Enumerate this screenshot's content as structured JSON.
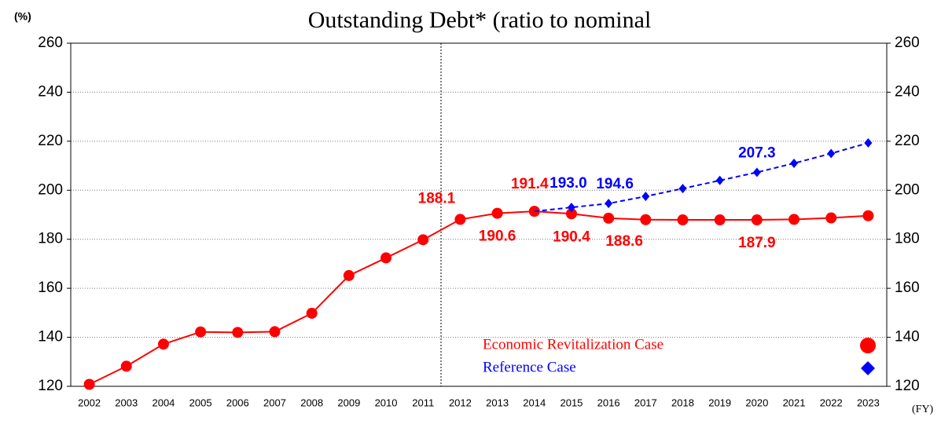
{
  "chart_data": {
    "type": "line",
    "title": "Outstanding Debt* (ratio to nominal",
    "y_unit": "(%)",
    "x_unit": "(FY)",
    "categories": [
      "2002",
      "2003",
      "2004",
      "2005",
      "2006",
      "2007",
      "2008",
      "2009",
      "2010",
      "2011",
      "2012",
      "2013",
      "2014",
      "2015",
      "2016",
      "2017",
      "2018",
      "2019",
      "2020",
      "2021",
      "2022",
      "2023"
    ],
    "series": [
      {
        "name": "Economic Revitalization Case",
        "color": "#ff0000",
        "marker": "circle",
        "dash": false,
        "values": [
          120.8,
          128.2,
          137.2,
          142.2,
          142.0,
          142.3,
          149.8,
          165.2,
          172.4,
          179.8,
          188.1,
          190.6,
          191.4,
          190.4,
          188.6,
          188.0,
          187.9,
          187.9,
          187.9,
          188.1,
          188.7,
          189.6
        ],
        "value_labels": [
          null,
          null,
          null,
          null,
          null,
          null,
          null,
          null,
          null,
          null,
          "188.1",
          "190.6",
          "191.4",
          "190.4",
          "188.6",
          null,
          null,
          null,
          "187.9",
          null,
          null,
          null
        ]
      },
      {
        "name": "Reference Case",
        "color": "#0000ff",
        "marker": "diamond",
        "dash": true,
        "values": [
          null,
          null,
          null,
          null,
          null,
          null,
          null,
          null,
          null,
          null,
          null,
          null,
          191.4,
          193.0,
          194.6,
          197.5,
          200.7,
          204.0,
          207.3,
          211.0,
          215.0,
          219.3
        ],
        "value_labels": [
          null,
          null,
          null,
          null,
          null,
          null,
          null,
          null,
          null,
          null,
          null,
          null,
          null,
          "193.0",
          "194.6",
          null,
          null,
          null,
          "207.3",
          null,
          null,
          null
        ]
      }
    ],
    "ylim": [
      120,
      260
    ],
    "yticks": [
      120,
      140,
      160,
      180,
      200,
      220,
      240,
      260
    ],
    "grid": true
  }
}
